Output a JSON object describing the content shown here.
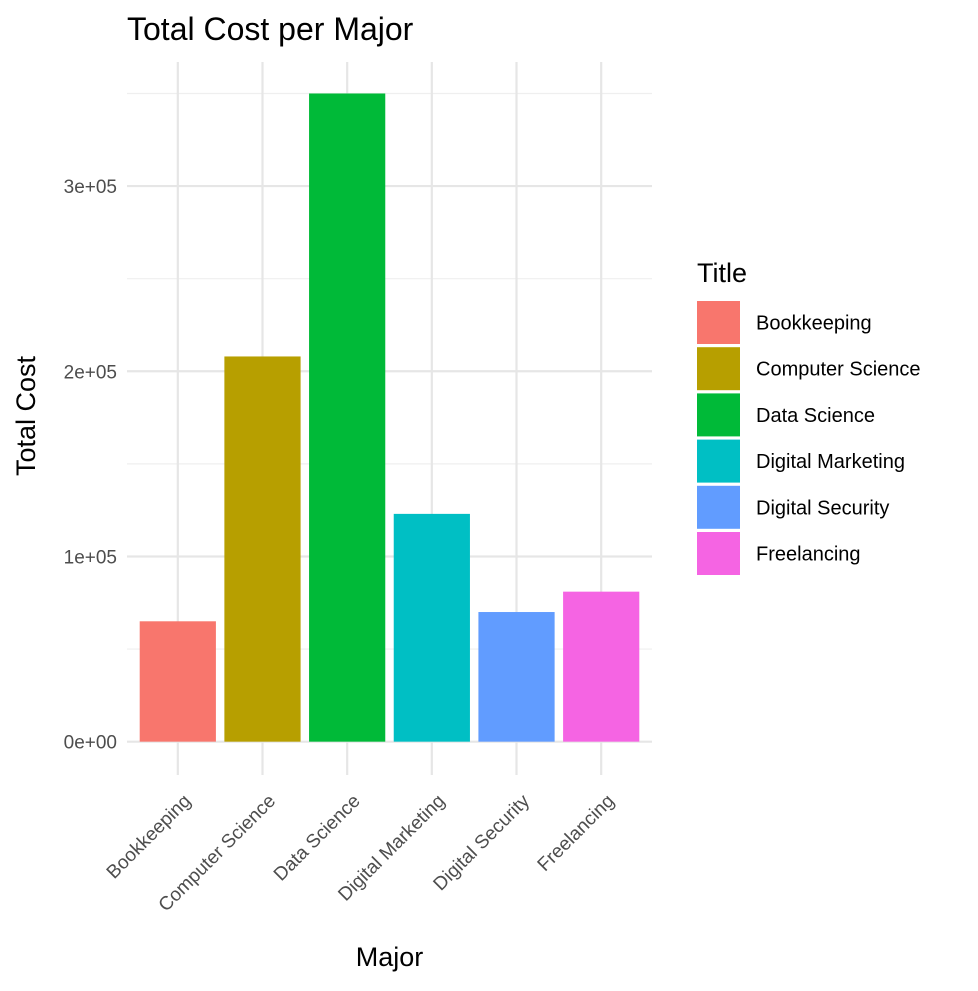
{
  "chart_data": {
    "type": "bar",
    "title": "Total Cost per Major",
    "xlabel": "Major",
    "ylabel": "Total Cost",
    "categories": [
      "Bookkeeping",
      "Computer Science",
      "Data Science",
      "Digital Marketing",
      "Digital Security",
      "Freelancing"
    ],
    "values": [
      65000,
      208000,
      350000,
      123000,
      70000,
      81000
    ],
    "colors": [
      "#F8766D",
      "#B79F00",
      "#00BA38",
      "#00BFC4",
      "#619CFF",
      "#F564E3"
    ],
    "ylim": [
      -18000,
      367000
    ],
    "y_ticks": [
      0,
      100000,
      200000,
      300000
    ],
    "y_tick_labels": [
      "0e+00",
      "1e+05",
      "2e+05",
      "3e+05"
    ],
    "y_minor_ticks": [
      50000,
      150000,
      250000,
      350000
    ],
    "grid": true,
    "legend": {
      "title": "Title",
      "position": "right",
      "entries": [
        "Bookkeeping",
        "Computer Science",
        "Data Science",
        "Digital Marketing",
        "Digital Security",
        "Freelancing"
      ]
    }
  }
}
